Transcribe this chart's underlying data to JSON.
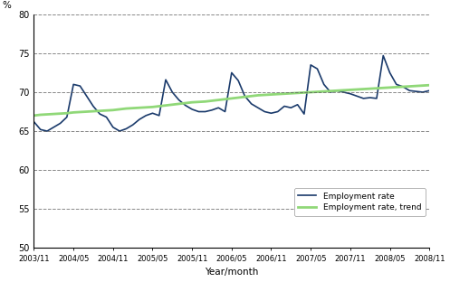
{
  "xlabel": "Year/month",
  "ylabel": "%",
  "ylim": [
    50,
    80
  ],
  "yticks": [
    50,
    55,
    60,
    65,
    70,
    75,
    80
  ],
  "x_labels": [
    "2003/11",
    "2004/05",
    "2004/11",
    "2005/05",
    "2005/11",
    "2006/05",
    "2006/11",
    "2007/05",
    "2007/11",
    "2008/05",
    "2008/11"
  ],
  "tick_positions": [
    0,
    6,
    12,
    18,
    24,
    30,
    36,
    42,
    48,
    54,
    60
  ],
  "emp_rate": [
    66.2,
    65.2,
    65.0,
    65.5,
    66.0,
    66.8,
    71.0,
    70.8,
    69.5,
    68.2,
    67.2,
    66.8,
    65.5,
    65.0,
    65.3,
    65.8,
    66.5,
    67.0,
    67.3,
    67.0,
    71.6,
    70.0,
    69.0,
    68.3,
    67.8,
    67.5,
    67.5,
    67.7,
    68.0,
    67.5,
    72.5,
    71.5,
    69.5,
    68.5,
    68.0,
    67.5,
    67.3,
    67.5,
    68.2,
    68.0,
    68.4,
    67.2,
    73.5,
    73.0,
    71.0,
    70.0,
    70.2,
    70.0,
    69.8,
    69.5,
    69.2,
    69.3,
    69.2,
    74.7,
    72.5,
    71.0,
    70.7,
    70.2,
    70.1,
    70.0,
    70.2
  ],
  "trend_rate": [
    67.0,
    67.1,
    67.15,
    67.2,
    67.25,
    67.3,
    67.4,
    67.45,
    67.5,
    67.55,
    67.6,
    67.65,
    67.7,
    67.8,
    67.9,
    67.95,
    68.0,
    68.05,
    68.1,
    68.2,
    68.3,
    68.4,
    68.5,
    68.6,
    68.7,
    68.75,
    68.8,
    68.9,
    69.0,
    69.1,
    69.2,
    69.3,
    69.4,
    69.5,
    69.6,
    69.65,
    69.7,
    69.75,
    69.8,
    69.85,
    69.9,
    69.95,
    70.0,
    70.05,
    70.1,
    70.15,
    70.2,
    70.25,
    70.3,
    70.35,
    70.4,
    70.45,
    70.5,
    70.55,
    70.6,
    70.65,
    70.7,
    70.75,
    70.8,
    70.85,
    70.9
  ],
  "employment_color": "#1a3a6b",
  "trend_color": "#90d878",
  "bg_color": "#ffffff",
  "grid_color": "#555555",
  "legend_labels": [
    "Employment rate",
    "Employment rate, trend"
  ]
}
